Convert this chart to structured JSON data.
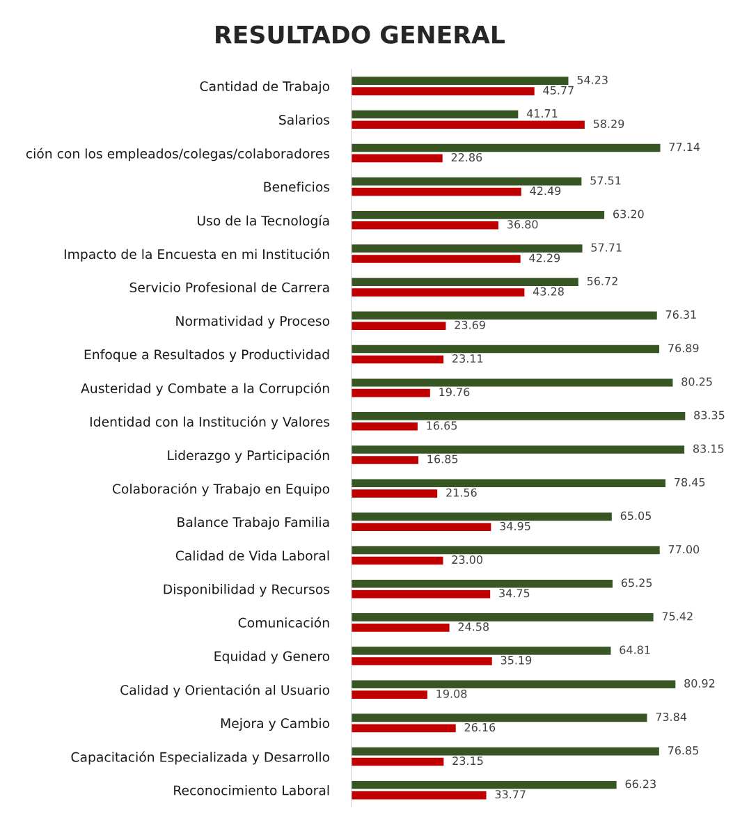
{
  "chart_data": {
    "type": "bar",
    "orientation": "horizontal",
    "title": "RESULTADO GENERAL",
    "categories": [
      "Cantidad de Trabajo",
      "Salarios",
      "ción con los empleados/colegas/colaboradores",
      "Beneficios",
      "Uso de la Tecnología",
      "Impacto de la Encuesta en mi Institución",
      "Servicio Profesional de Carrera",
      "Normatividad y Proceso",
      "Enfoque a Resultados y Productividad",
      "Austeridad y Combate a la Corrupción",
      "Identidad con la Institución y Valores",
      "Liderazgo y Participación",
      "Colaboración y Trabajo en Equipo",
      "Balance Trabajo Familia",
      "Calidad de Vida Laboral",
      "Disponibilidad y Recursos",
      "Comunicación",
      "Equidad y Genero",
      "Calidad y Orientación al Usuario",
      "Mejora y Cambio",
      "Capacitación Especializada y Desarrollo",
      "Reconocimiento Laboral"
    ],
    "series": [
      {
        "color": "#375623",
        "values": [
          54.23,
          41.71,
          77.14,
          57.51,
          63.2,
          57.71,
          56.72,
          76.31,
          76.89,
          80.25,
          83.35,
          83.15,
          78.45,
          65.05,
          77.0,
          65.25,
          75.42,
          64.81,
          80.92,
          73.84,
          76.85,
          66.23
        ],
        "value_labels": [
          "54.23",
          "41.71",
          "77.14",
          "57.51",
          "63.20",
          "57.71",
          "56.72",
          "76.31",
          "76.89",
          "80.25",
          "83.35",
          "83.15",
          "78.45",
          "65.05",
          "77.00",
          "65.25",
          "75.42",
          "64.81",
          "80.92",
          "73.84",
          "76.85",
          "66.23"
        ]
      },
      {
        "color": "#c00000",
        "values": [
          45.77,
          58.29,
          22.86,
          42.49,
          36.8,
          42.29,
          43.28,
          23.69,
          23.11,
          19.76,
          16.65,
          16.85,
          21.56,
          34.95,
          23.0,
          34.75,
          24.58,
          35.19,
          19.08,
          26.16,
          23.15,
          33.77
        ],
        "value_labels": [
          "45.77",
          "58.29",
          "22.86",
          "42.49",
          "36.80",
          "42.29",
          "43.28",
          "23.69",
          "23.11",
          "19.76",
          "16.65",
          "16.85",
          "21.56",
          "34.95",
          "23.00",
          "34.75",
          "24.58",
          "35.19",
          "19.08",
          "26.16",
          "23.15",
          "33.77"
        ]
      }
    ],
    "grid": false,
    "legend": false
  }
}
